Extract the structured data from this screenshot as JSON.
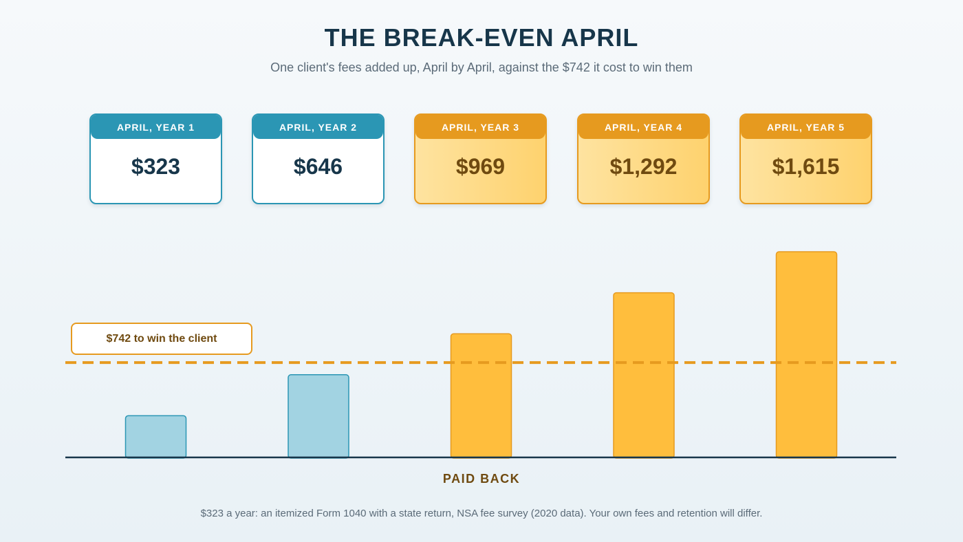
{
  "header": {
    "title": "THE BREAK-EVEN APRIL",
    "subtitle": "One client's fees added up, April by April, against the $742 it cost to win them"
  },
  "cards": [
    {
      "label": "APRIL, YEAR 1",
      "value": "$323"
    },
    {
      "label": "APRIL, YEAR 2",
      "value": "$646"
    },
    {
      "label": "APRIL, YEAR 3",
      "value": "$969"
    },
    {
      "label": "APRIL, YEAR 4",
      "value": "$1,292"
    },
    {
      "label": "APRIL, YEAR 5",
      "value": "$1,615"
    }
  ],
  "chart_data": {
    "type": "bar",
    "categories": [
      "APRIL, YEAR 1",
      "APRIL, YEAR 2",
      "APRIL, YEAR 3",
      "APRIL, YEAR 4",
      "APRIL, YEAR 5"
    ],
    "values": [
      323,
      646,
      969,
      1292,
      1615
    ],
    "threshold": {
      "value": 742,
      "label": "$742 to win the client"
    },
    "ylim": [
      0,
      1615
    ],
    "xlabel": "PAID BACK",
    "grid": false,
    "legend": "none",
    "colors": {
      "below_threshold_fill": "#a2d3e2",
      "below_threshold_stroke": "#2b96b4",
      "above_threshold_fill": "#ffbe3d",
      "above_threshold_stroke": "#e69a1f",
      "threshold_line": "#e69a1f",
      "baseline": "#17364a"
    }
  },
  "footnote": "$323 a year: an itemized Form 1040 with a state return, NSA fee survey (2020 data). Your own fees and retention will differ."
}
